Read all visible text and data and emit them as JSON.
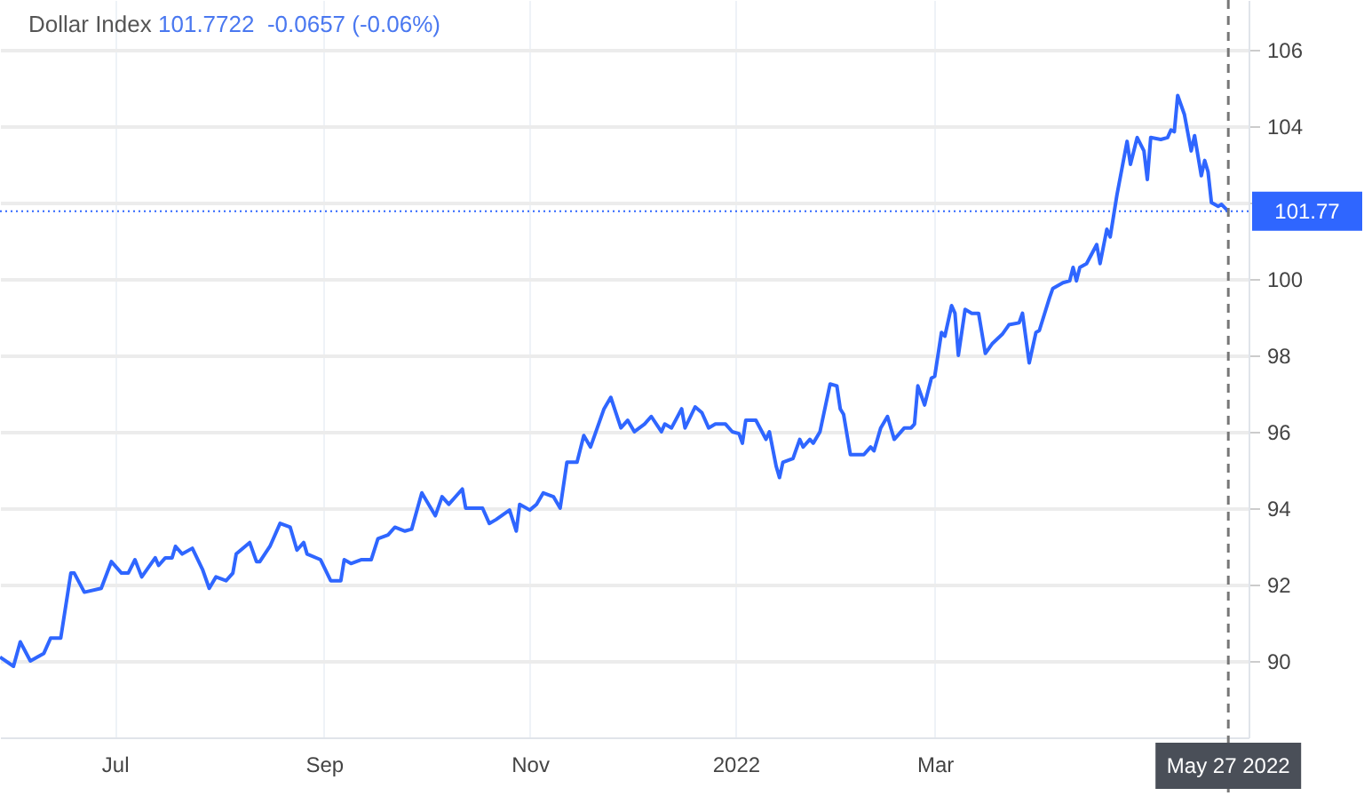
{
  "chart_data": {
    "type": "line",
    "title": "Dollar Index",
    "subtitle": "101.7722  -0.0657 (-0.06%)",
    "x": [
      "2021-05-28",
      "2021-06-01",
      "2021-06-03",
      "2021-06-06",
      "2021-06-10",
      "2021-06-12",
      "2021-06-15",
      "2021-06-18",
      "2021-06-19",
      "2021-06-22",
      "2021-06-27",
      "2021-06-30",
      "2021-07-03",
      "2021-07-05",
      "2021-07-07",
      "2021-07-09",
      "2021-07-13",
      "2021-07-14",
      "2021-07-16",
      "2021-07-18",
      "2021-07-19",
      "2021-07-21",
      "2021-07-24",
      "2021-07-27",
      "2021-07-29",
      "2021-07-31",
      "2021-08-03",
      "2021-08-05",
      "2021-08-06",
      "2021-08-10",
      "2021-08-12",
      "2021-08-13",
      "2021-08-16",
      "2021-08-19",
      "2021-08-22",
      "2021-08-24",
      "2021-08-26",
      "2021-08-27",
      "2021-08-31",
      "2021-09-03",
      "2021-09-06",
      "2021-09-07",
      "2021-09-09",
      "2021-09-12",
      "2021-09-15",
      "2021-09-17",
      "2021-09-20",
      "2021-09-22",
      "2021-09-25",
      "2021-09-27",
      "2021-09-30",
      "2021-10-04",
      "2021-10-06",
      "2021-10-08",
      "2021-10-12",
      "2021-10-13",
      "2021-10-18",
      "2021-10-20",
      "2021-10-22",
      "2021-10-26",
      "2021-10-28",
      "2021-10-29",
      "2021-11-01",
      "2021-11-03",
      "2021-11-05",
      "2021-11-08",
      "2021-11-10",
      "2021-11-12",
      "2021-11-15",
      "2021-11-17",
      "2021-11-19",
      "2021-11-21",
      "2021-11-23",
      "2021-11-25",
      "2021-11-28",
      "2021-11-30",
      "2021-12-02",
      "2021-12-05",
      "2021-12-07",
      "2021-12-10",
      "2021-12-11",
      "2021-12-13",
      "2021-12-16",
      "2021-12-17",
      "2021-12-20",
      "2021-12-22",
      "2021-12-24",
      "2021-12-26",
      "2021-12-29",
      "2021-12-31",
      "2022-01-02",
      "2022-01-03",
      "2022-01-04",
      "2022-01-07",
      "2022-01-10",
      "2022-01-11",
      "2022-01-13",
      "2022-01-14",
      "2022-01-15",
      "2022-01-18",
      "2022-01-20",
      "2022-01-21",
      "2022-01-23",
      "2022-01-24",
      "2022-01-26",
      "2022-01-29",
      "2022-01-31",
      "2022-02-01",
      "2022-02-02",
      "2022-02-04",
      "2022-02-07",
      "2022-02-08",
      "2022-02-10",
      "2022-02-11",
      "2022-02-13",
      "2022-02-15",
      "2022-02-17",
      "2022-02-20",
      "2022-02-22",
      "2022-02-23",
      "2022-02-24",
      "2022-02-26",
      "2022-02-28",
      "2022-03-01",
      "2022-03-03",
      "2022-03-04",
      "2022-03-06",
      "2022-03-07",
      "2022-03-08",
      "2022-03-10",
      "2022-03-12",
      "2022-03-14",
      "2022-03-16",
      "2022-03-18",
      "2022-03-21",
      "2022-03-23",
      "2022-03-26",
      "2022-03-27",
      "2022-03-29",
      "2022-03-31",
      "2022-04-01",
      "2022-04-04",
      "2022-04-05",
      "2022-04-08",
      "2022-04-10",
      "2022-04-11",
      "2022-04-12",
      "2022-04-13",
      "2022-04-15",
      "2022-04-18",
      "2022-04-19",
      "2022-04-21",
      "2022-04-22",
      "2022-04-24",
      "2022-04-27",
      "2022-04-28",
      "2022-04-30",
      "2022-05-02",
      "2022-05-03",
      "2022-05-04",
      "2022-05-07",
      "2022-05-09",
      "2022-05-10",
      "2022-05-11",
      "2022-05-12",
      "2022-05-13",
      "2022-05-14",
      "2022-05-16",
      "2022-05-17",
      "2022-05-19",
      "2022-05-20",
      "2022-05-21",
      "2022-05-22",
      "2022-05-24",
      "2022-05-25",
      "2022-05-27"
    ],
    "series": [
      {
        "color": "#2f66ff",
        "values": [
          90.1,
          89.86,
          90.5,
          90.0,
          90.2,
          90.6,
          90.6,
          92.3,
          92.3,
          91.8,
          91.9,
          92.6,
          92.3,
          92.3,
          92.65,
          92.2,
          92.7,
          92.5,
          92.7,
          92.7,
          93.0,
          92.8,
          92.95,
          92.4,
          91.9,
          92.2,
          92.1,
          92.3,
          92.8,
          93.1,
          92.6,
          92.6,
          93.0,
          93.6,
          93.5,
          92.9,
          93.1,
          92.8,
          92.65,
          92.1,
          92.1,
          92.65,
          92.55,
          92.65,
          92.65,
          93.2,
          93.3,
          93.5,
          93.4,
          93.45,
          94.4,
          93.8,
          94.3,
          94.1,
          94.5,
          94.0,
          94.0,
          93.6,
          93.7,
          93.95,
          93.4,
          94.1,
          93.95,
          94.1,
          94.4,
          94.3,
          94.0,
          95.2,
          95.2,
          95.9,
          95.6,
          96.1,
          96.6,
          96.9,
          96.1,
          96.3,
          96.0,
          96.2,
          96.4,
          96.0,
          96.2,
          96.1,
          96.6,
          96.1,
          96.65,
          96.5,
          96.1,
          96.2,
          96.2,
          96.0,
          95.95,
          95.7,
          96.3,
          96.3,
          95.8,
          96.0,
          95.1,
          94.8,
          95.2,
          95.3,
          95.8,
          95.6,
          95.8,
          95.7,
          96.0,
          97.25,
          97.2,
          96.6,
          96.45,
          95.4,
          95.4,
          95.4,
          95.6,
          95.5,
          96.1,
          96.4,
          95.8,
          96.1,
          96.1,
          96.2,
          97.2,
          96.7,
          97.4,
          97.45,
          98.6,
          98.5,
          99.3,
          99.1,
          98.0,
          99.2,
          99.1,
          99.1,
          98.05,
          98.3,
          98.55,
          98.8,
          98.85,
          99.1,
          97.8,
          98.6,
          98.65,
          99.5,
          99.75,
          99.9,
          99.95,
          100.3,
          99.95,
          100.3,
          100.4,
          100.9,
          100.4,
          101.3,
          101.1,
          102.2,
          103.6,
          103.0,
          103.7,
          103.35,
          102.6,
          103.7,
          103.65,
          103.7,
          103.9,
          103.85,
          104.8,
          104.55,
          104.3,
          103.35,
          103.75,
          102.7,
          103.1,
          102.8,
          102.0,
          101.9,
          101.95,
          101.77
        ]
      }
    ],
    "xlim": [
      "2021-05-28",
      "2022-06-02"
    ],
    "xticks": [
      {
        "value": "2021-07-01",
        "label": "Jul"
      },
      {
        "value": "2021-09-01",
        "label": "Sep"
      },
      {
        "value": "2021-11-01",
        "label": "Nov"
      },
      {
        "value": "2022-01-01",
        "label": "2022"
      },
      {
        "value": "2022-03-01",
        "label": "Mar"
      }
    ],
    "ylim": [
      88,
      107.3
    ],
    "yticks": [
      90,
      92,
      94,
      96,
      98,
      100,
      {
        "value": 102,
        "label": null
      },
      104,
      106
    ],
    "grid": true,
    "ref_lines": [
      {
        "axis": "y",
        "value": 101.77,
        "label": "101.77",
        "color": "#2f66ff",
        "line_style": "dotted"
      },
      {
        "axis": "x",
        "value": "2022-05-27",
        "label": "May 27 2022",
        "color": "#777777",
        "line_style": "dashed"
      }
    ]
  }
}
